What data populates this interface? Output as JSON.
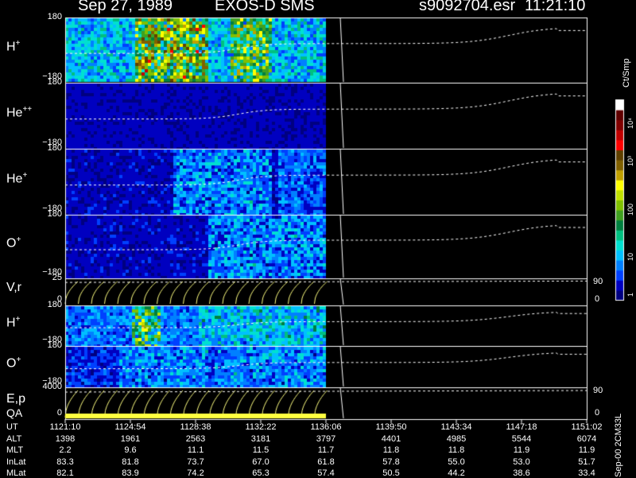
{
  "header": {
    "date": "Sep 27, 1989",
    "mission": "EXOS-D SMS",
    "file": "s9092704.esr",
    "time": "11:21:10"
  },
  "panels": [
    {
      "label_main": "H",
      "label_sup": "+",
      "ytop": "180",
      "ybot": "−180"
    },
    {
      "label_main": "He",
      "label_sup": "++",
      "ytop": "180",
      "ybot": "−180"
    },
    {
      "label_main": "He",
      "label_sup": "+",
      "ytop": "180",
      "ybot": "−180"
    },
    {
      "label_main": "O",
      "label_sup": "+",
      "ytop": "180",
      "ybot": "−180"
    },
    {
      "label_main": "V,r",
      "label_sup": "",
      "ytop": "25",
      "ybot": "0",
      "rtop": "90",
      "rbot": "0"
    },
    {
      "label_main": "H",
      "label_sup": "+",
      "ytop": "180",
      "ybot": "−180"
    },
    {
      "label_main": "O",
      "label_sup": "+",
      "ytop": "180",
      "ybot": "−180"
    },
    {
      "label_main": "E,p",
      "label_sup": "",
      "label2": "QA",
      "ytop": "4000",
      "ybot": "0",
      "rtop": "90",
      "rbot": "0"
    }
  ],
  "colorbar": {
    "title": "Ct/Smp",
    "ticks": [
      "1",
      "10",
      "100",
      "10³",
      "10⁴"
    ],
    "colors": [
      "#000080",
      "#0000c0",
      "#0040ff",
      "#0080ff",
      "#00c0ff",
      "#00e0d0",
      "#00c080",
      "#008040",
      "#40a020",
      "#80c000",
      "#c0e000",
      "#ffff00",
      "#c0a000",
      "#806000",
      "#604000",
      "#ff0000",
      "#c00000",
      "#800000",
      "#600000",
      "#ffffff"
    ]
  },
  "ephemeris": {
    "rows": [
      {
        "label": "UT",
        "values": [
          "1121:10",
          "1124:54",
          "1128:38",
          "1132:22",
          "1136:06",
          "1139:50",
          "1143:34",
          "1147:18",
          "1151:02"
        ]
      },
      {
        "label": "ALT",
        "values": [
          "1398",
          "1961",
          "2563",
          "3181",
          "3797",
          "4401",
          "4985",
          "5544",
          "6074"
        ]
      },
      {
        "label": "MLT",
        "values": [
          "2.2",
          "9.6",
          "11.1",
          "11.5",
          "11.7",
          "11.8",
          "11.8",
          "11.9",
          "11.9"
        ]
      },
      {
        "label": "InLat",
        "values": [
          "83.3",
          "81.8",
          "73.7",
          "67.0",
          "61.8",
          "57.8",
          "55.0",
          "53.0",
          "51.7"
        ]
      },
      {
        "label": "MLat",
        "values": [
          "82.1",
          "83.9",
          "74.2",
          "65.3",
          "57.4",
          "50.5",
          "44.2",
          "38.6",
          "33.4"
        ]
      }
    ]
  },
  "side_id": "Sep-00  2CM33L",
  "chart_data": {
    "type": "heatmap",
    "title": "Sep 27, 1989   EXOS-D SMS",
    "subtitle": "s9092704.esr  11:21:10",
    "x_ticks": [
      "1121:10",
      "1124:54",
      "1128:38",
      "1132:22",
      "1136:06",
      "1139:50",
      "1143:34",
      "1147:18",
      "1151:02"
    ],
    "data_end_fraction": 0.51,
    "series": [
      {
        "name": "H+",
        "ylim": [
          -180,
          180
        ]
      },
      {
        "name": "He++",
        "ylim": [
          -180,
          180
        ]
      },
      {
        "name": "He+",
        "ylim": [
          -180,
          180
        ]
      },
      {
        "name": "O+",
        "ylim": [
          -180,
          180
        ]
      },
      {
        "name": "V,r",
        "ylim": [
          0,
          25
        ],
        "y2lim": [
          0,
          90
        ]
      },
      {
        "name": "H+",
        "ylim": [
          -180,
          180
        ]
      },
      {
        "name": "O+",
        "ylim": [
          -180,
          180
        ]
      },
      {
        "name": "E,p",
        "ylim": [
          0,
          4000
        ],
        "y2lim": [
          0,
          90
        ]
      }
    ],
    "colorbar_label": "Ct/Smp",
    "colorbar_ticks": [
      "1",
      "10",
      "100",
      "10³",
      "10⁴"
    ]
  }
}
